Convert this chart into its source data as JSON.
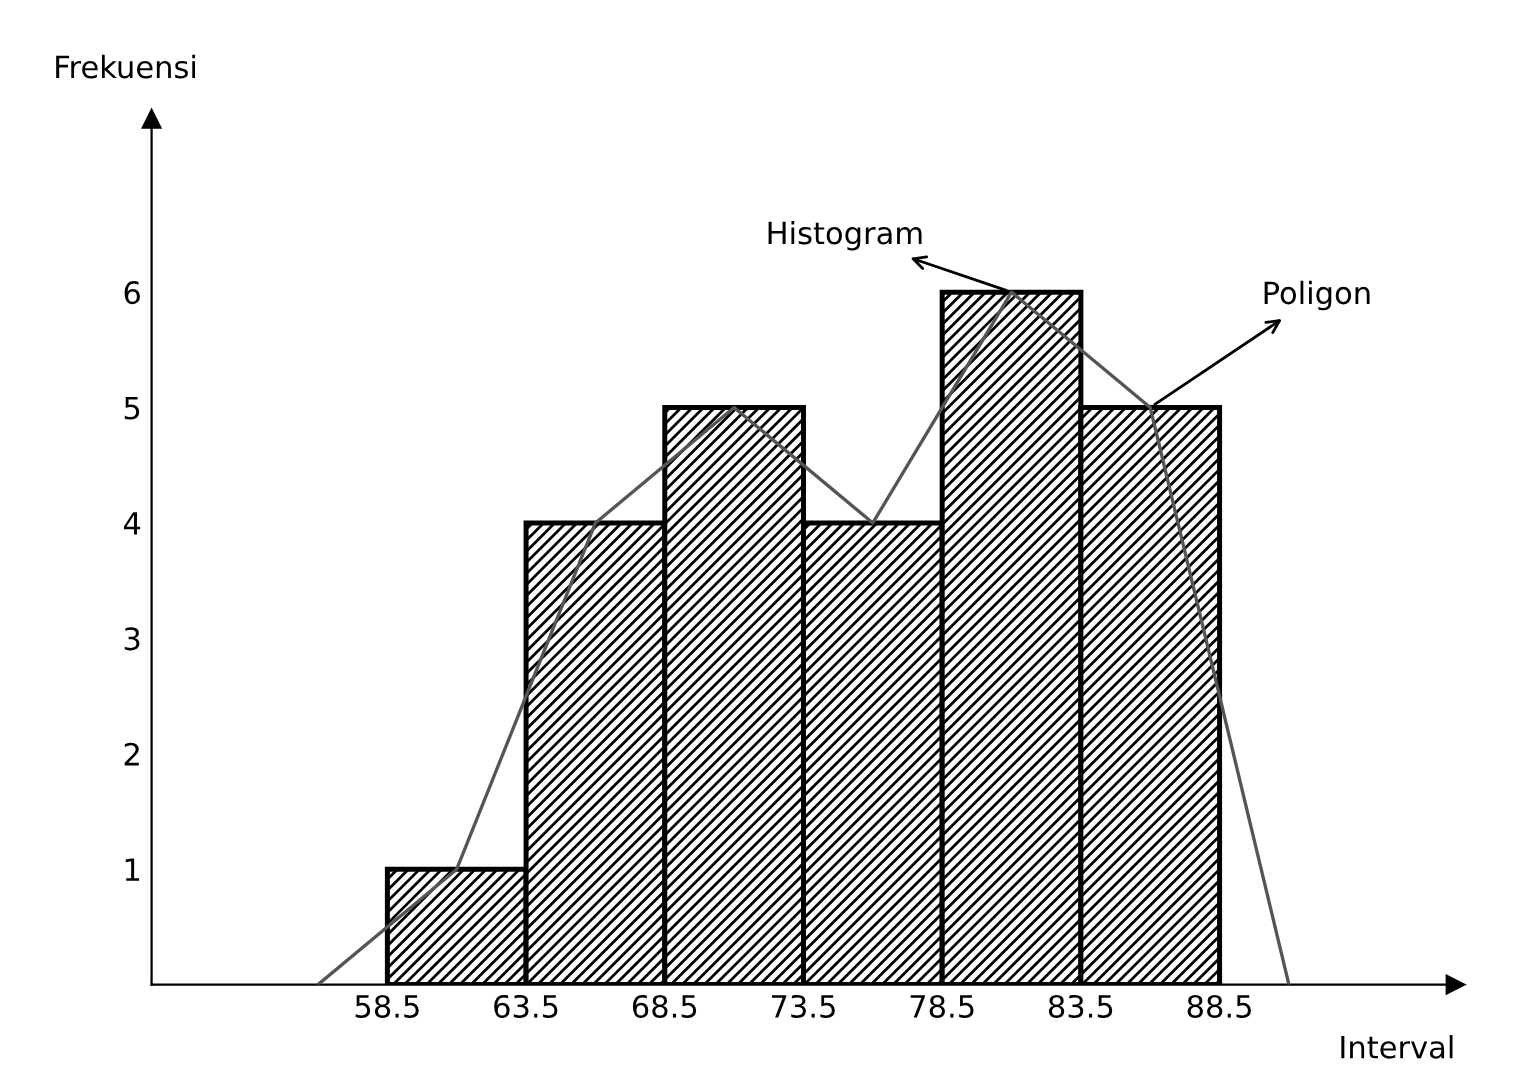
{
  "chart_data": {
    "type": "histogram",
    "xlabel": "Interval",
    "ylabel": "Frekuensi",
    "bins": [
      58.5,
      63.5,
      68.5,
      73.5,
      78.5,
      83.5,
      88.5
    ],
    "values": [
      1,
      4,
      5,
      4,
      6,
      5
    ],
    "color": "#000000",
    "series": [
      {
        "type": "line",
        "color": "#555555",
        "x": [
          56,
          61,
          66,
          71,
          76,
          81,
          86,
          91
        ],
        "values": [
          0,
          1,
          4,
          5,
          4,
          6,
          5,
          0
        ]
      }
    ],
    "xlim": [
      50,
      97
    ],
    "xticks": [
      58.5,
      63.5,
      68.5,
      73.5,
      78.5,
      83.5,
      88.5
    ],
    "ylim": [
      0,
      7.5
    ],
    "yticks": [
      1,
      2,
      3,
      4,
      5,
      6
    ],
    "annotations": [
      {
        "text": "Histogram",
        "x": 81,
        "y": 6
      },
      {
        "text": "Poligon",
        "x": 86,
        "y": 5
      }
    ],
    "grid": false,
    "legend": false
  }
}
